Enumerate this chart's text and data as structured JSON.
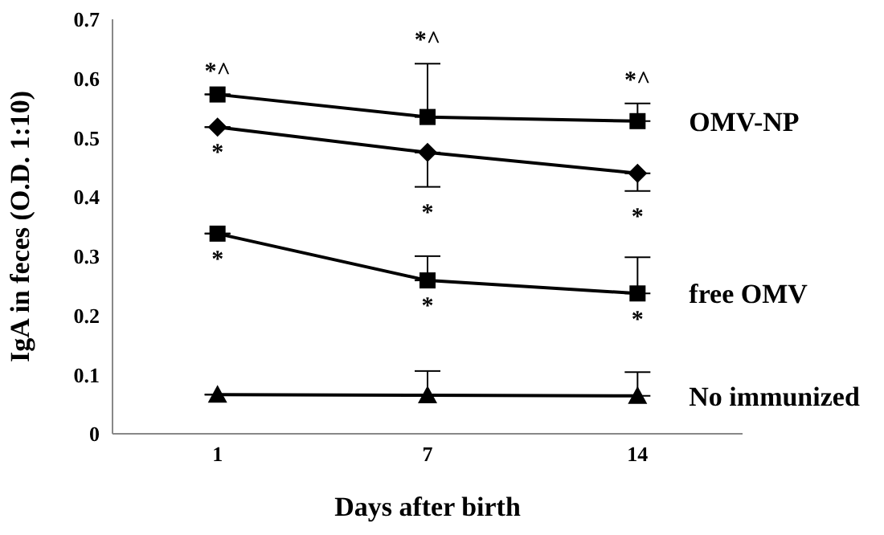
{
  "chart_data": {
    "type": "line",
    "xlabel": "Days after birth",
    "ylabel": "IgA in feces (O.D. 1:10)",
    "categories": [
      "1",
      "7",
      "14"
    ],
    "ylim": [
      0,
      0.7
    ],
    "yticks": [
      0,
      0.1,
      0.2,
      0.3,
      0.4,
      0.5,
      0.6,
      0.7
    ],
    "legend": "right",
    "series": [
      {
        "name": "OMV-NP",
        "color": "#000000",
        "marker": "square",
        "values": [
          0.573,
          0.535,
          0.528
        ],
        "errors": [
          null,
          [
            0.535,
            0.625
          ],
          [
            0.528,
            0.558
          ]
        ]
      },
      {
        "color": "#000000",
        "marker": "diamond",
        "values": [
          0.518,
          0.475,
          0.44
        ],
        "errors": [
          null,
          [
            0.417,
            0.475
          ],
          [
            0.41,
            0.44
          ]
        ]
      },
      {
        "name": "free OMV",
        "color": "#000000",
        "marker": "square",
        "values": [
          0.338,
          0.259,
          0.237
        ],
        "errors": [
          null,
          [
            0.259,
            0.3
          ],
          [
            0.237,
            0.298
          ]
        ]
      },
      {
        "name": "No immunized",
        "color": "#000000",
        "marker": "triangle",
        "values": [
          0.066,
          0.065,
          0.064
        ],
        "errors": [
          null,
          [
            0.065,
            0.106
          ],
          [
            0.064,
            0.104
          ]
        ]
      }
    ],
    "annotations": [
      {
        "text": "*^",
        "x": "1",
        "y": 0.573
      },
      {
        "text": "*^",
        "x": "7",
        "y": 0.625
      },
      {
        "text": "*^",
        "x": "14",
        "y": 0.558
      },
      {
        "text": "*",
        "x": "1",
        "y": 0.518
      },
      {
        "text": "*",
        "x": "7",
        "y": 0.417
      },
      {
        "text": "*",
        "x": "14",
        "y": 0.41
      },
      {
        "text": "*",
        "x": "1",
        "y": 0.338
      },
      {
        "text": "*",
        "x": "7",
        "y": 0.259
      },
      {
        "text": "*",
        "x": "14",
        "y": 0.237
      }
    ]
  }
}
